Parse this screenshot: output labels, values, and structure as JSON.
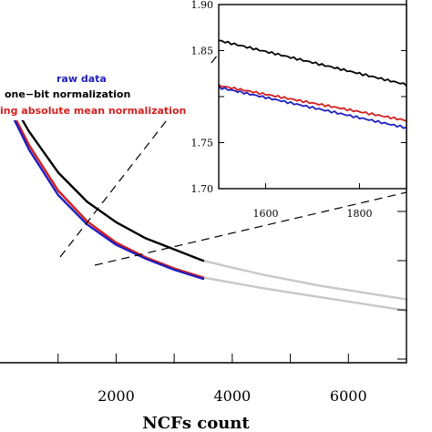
{
  "chart_data": [
    {
      "type": "line",
      "xlabel": "NCFs count",
      "xticks": [
        2000,
        4000,
        6000
      ],
      "xlim": [
        0,
        7000
      ],
      "series": [
        {
          "name": "raw data",
          "color": "#1f1fbf",
          "x": [
            0,
            500,
            1000,
            1500,
            2000,
            2500,
            3000,
            3500
          ],
          "y": [
            2.15,
            2.02,
            1.92,
            1.855,
            1.81,
            1.78,
            1.755,
            1.735
          ]
        },
        {
          "name": "one-bit normalization",
          "color": "#000000",
          "x": [
            0,
            500,
            1000,
            1500,
            2000,
            2500,
            3000,
            3500
          ],
          "y": [
            2.17,
            2.06,
            1.97,
            1.905,
            1.86,
            1.825,
            1.8,
            1.775
          ]
        },
        {
          "name": "running absolute mean normalization",
          "color": "#d42020",
          "x": [
            0,
            500,
            1000,
            1500,
            2000,
            2500,
            3000,
            3500
          ],
          "y": [
            2.155,
            2.03,
            1.93,
            1.862,
            1.815,
            1.783,
            1.758,
            1.738
          ]
        },
        {
          "name": "",
          "color": "#c8c8c8",
          "x": [
            3500,
            4500,
            5500,
            6500,
            7000
          ],
          "y": [
            1.775,
            1.745,
            1.72,
            1.7,
            1.69
          ]
        },
        {
          "name": "",
          "color": "#c8c8c8",
          "x": [
            3500,
            4500,
            5500,
            6500,
            7000
          ],
          "y": [
            1.738,
            1.715,
            1.695,
            1.675,
            1.665
          ]
        }
      ],
      "legend": {
        "placement": "top-left",
        "entries": [
          {
            "label": "raw data",
            "color": "#1f1fbf"
          },
          {
            "label": "one−bit normalization",
            "color": "#000000"
          },
          {
            "label": "ing absolute mean normalization",
            "color": "#d42020"
          }
        ]
      }
    },
    {
      "type": "line",
      "xticks": [
        1600,
        1800
      ],
      "yticks": [
        1.7,
        1.75,
        1.8,
        1.85,
        1.9
      ],
      "ytick_labels": [
        "1.70",
        "1.75",
        "1.80",
        "1.85",
        "1.90"
      ],
      "xlim": [
        1500,
        1900
      ],
      "ylim": [
        1.7,
        1.9
      ],
      "series": [
        {
          "name": "one-bit normalization",
          "color": "#000000",
          "x": [
            1500,
            1900
          ],
          "y": [
            1.861,
            1.813
          ]
        },
        {
          "name": "running absolute mean normalization",
          "color": "#d42020",
          "x": [
            1500,
            1900
          ],
          "y": [
            1.812,
            1.774
          ]
        },
        {
          "name": "raw data",
          "color": "#1f1fbf",
          "x": [
            1500,
            1900
          ],
          "y": [
            1.81,
            1.766
          ]
        }
      ]
    }
  ]
}
